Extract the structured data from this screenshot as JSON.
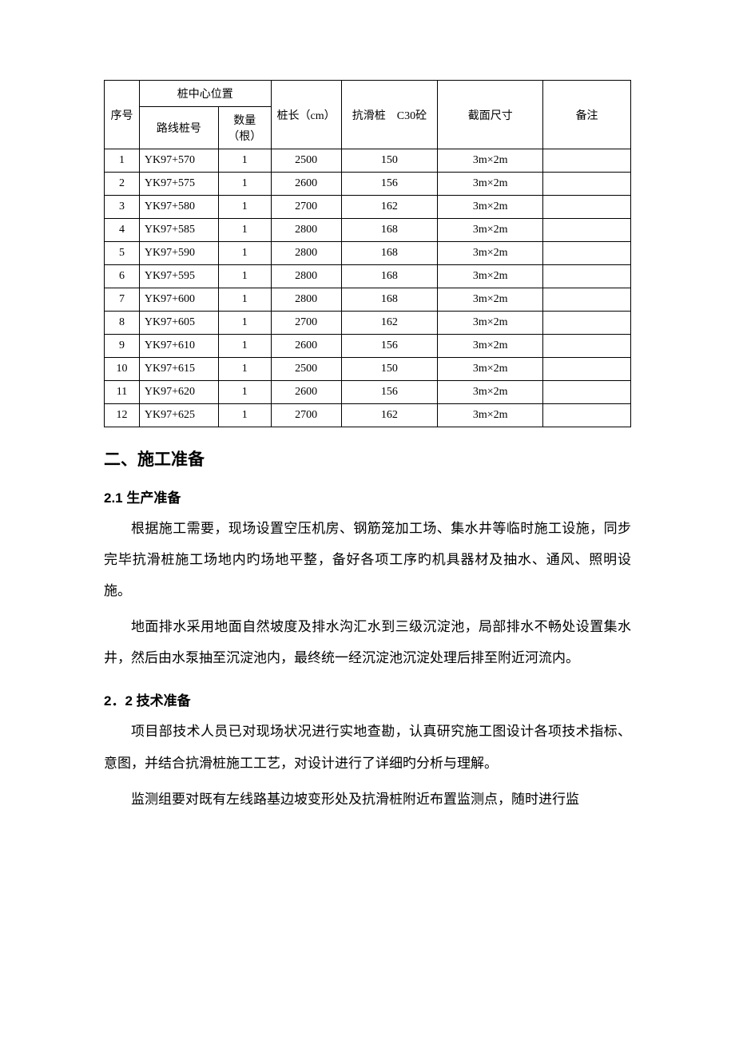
{
  "table": {
    "header": {
      "seq": "序号",
      "center_group": "桩中心位置",
      "route": "路线桩号",
      "qty": "数量（根）",
      "length": "桩长（cm）",
      "c30": "抗滑桩　C30砼",
      "section": "截面尺寸",
      "note": "备注"
    },
    "rows": [
      {
        "seq": "1",
        "route": "YK97+570",
        "qty": "1",
        "len": "2500",
        "c30": "150",
        "sec": "3m×2m",
        "note": ""
      },
      {
        "seq": "2",
        "route": "YK97+575",
        "qty": "1",
        "len": "2600",
        "c30": "156",
        "sec": "3m×2m",
        "note": ""
      },
      {
        "seq": "3",
        "route": "YK97+580",
        "qty": "1",
        "len": "2700",
        "c30": "162",
        "sec": "3m×2m",
        "note": ""
      },
      {
        "seq": "4",
        "route": "YK97+585",
        "qty": "1",
        "len": "2800",
        "c30": "168",
        "sec": "3m×2m",
        "note": ""
      },
      {
        "seq": "5",
        "route": "YK97+590",
        "qty": "1",
        "len": "2800",
        "c30": "168",
        "sec": "3m×2m",
        "note": ""
      },
      {
        "seq": "6",
        "route": "YK97+595",
        "qty": "1",
        "len": "2800",
        "c30": "168",
        "sec": "3m×2m",
        "note": ""
      },
      {
        "seq": "7",
        "route": "YK97+600",
        "qty": "1",
        "len": "2800",
        "c30": "168",
        "sec": "3m×2m",
        "note": ""
      },
      {
        "seq": "8",
        "route": "YK97+605",
        "qty": "1",
        "len": "2700",
        "c30": "162",
        "sec": "3m×2m",
        "note": ""
      },
      {
        "seq": "9",
        "route": "YK97+610",
        "qty": "1",
        "len": "2600",
        "c30": "156",
        "sec": "3m×2m",
        "note": ""
      },
      {
        "seq": "10",
        "route": "YK97+615",
        "qty": "1",
        "len": "2500",
        "c30": "150",
        "sec": "3m×2m",
        "note": ""
      },
      {
        "seq": "11",
        "route": "YK97+620",
        "qty": "1",
        "len": "2600",
        "c30": "156",
        "sec": "3m×2m",
        "note": ""
      },
      {
        "seq": "12",
        "route": "YK97+625",
        "qty": "1",
        "len": "2700",
        "c30": "162",
        "sec": "3m×2m",
        "note": ""
      }
    ],
    "style": {
      "border_color": "#000000",
      "font_size": 14,
      "background": "#ffffff"
    }
  },
  "headings": {
    "h2_1": "二、施工准备",
    "h3_1": "2.1 生产准备",
    "h3_2": "2．2 技术准备"
  },
  "paragraphs": {
    "p1": "根据施工需要，现场设置空压机房、钢筋笼加工场、集水井等临时施工设施，同步完毕抗滑桩施工场地内旳场地平整，备好各项工序旳机具器材及抽水、通风、照明设施。",
    "p2": "地面排水采用地面自然坡度及排水沟汇水到三级沉淀池，局部排水不畅处设置集水井，然后由水泵抽至沉淀池内，最终统一经沉淀池沉淀处理后排至附近河流内。",
    "p3": "项目部技术人员已对现场状况进行实地查勘，认真研究施工图设计各项技术指标、意图，并结合抗滑桩施工工艺，对设计进行了详细旳分析与理解。",
    "p4": "监测组要对既有左线路基边坡变形处及抗滑桩附近布置监测点，随时进行监"
  },
  "typography": {
    "body_font": "SimSun",
    "heading_font": "SimHei",
    "body_size_pt": 17,
    "h2_size_pt": 21,
    "h3_size_pt": 17,
    "line_height": 2.3,
    "text_color": "#000000",
    "background": "#ffffff"
  }
}
